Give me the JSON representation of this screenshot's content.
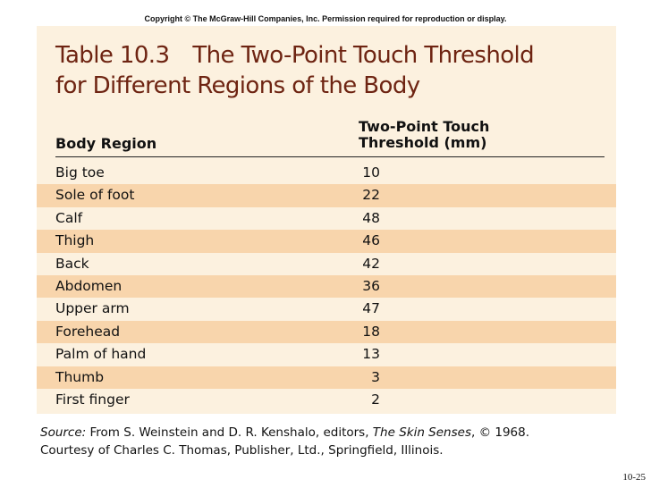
{
  "copyright": "Copyright © The McGraw-Hill Companies, Inc. Permission required for reproduction or display.",
  "table": {
    "title_number": "Table 10.3",
    "title_text_line1": "The Two-Point Touch Threshold",
    "title_text_line2": "for Different Regions of the Body",
    "col_region": "Body Region",
    "col_threshold_line1": "Two-Point Touch",
    "col_threshold_line2": "Threshold (mm)",
    "rows": [
      {
        "region": "Big toe",
        "value": "10"
      },
      {
        "region": "Sole of foot",
        "value": "22"
      },
      {
        "region": "Calf",
        "value": "48"
      },
      {
        "region": "Thigh",
        "value": "46"
      },
      {
        "region": "Back",
        "value": "42"
      },
      {
        "region": "Abdomen",
        "value": "36"
      },
      {
        "region": "Upper arm",
        "value": "47"
      },
      {
        "region": "Forehead",
        "value": "18"
      },
      {
        "region": "Palm of hand",
        "value": "13"
      },
      {
        "region": "Thumb",
        "value": "3"
      },
      {
        "region": "First finger",
        "value": "2"
      }
    ]
  },
  "source": {
    "label": "Source:",
    "text1": " From S. Weinstein and D. R. Kenshalo, editors, ",
    "book": "The Skin Senses",
    "text2": ", © 1968.",
    "line2": "Courtesy of Charles C. Thomas, Publisher, Ltd., Springfield, Illinois."
  },
  "page_number": "10-25",
  "colors": {
    "panel_bg": "#fcf1df",
    "stripe_bg": "#f8d5ac",
    "title_color": "#6e2412"
  }
}
